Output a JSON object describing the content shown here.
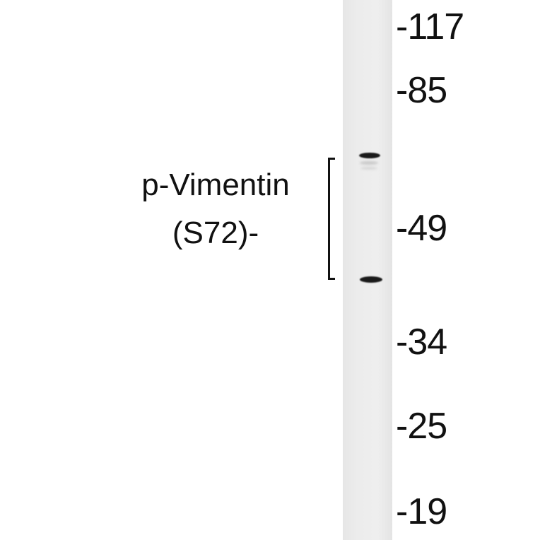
{
  "protein_label": {
    "line1": "p-Vimentin",
    "line2": "(S72)-"
  },
  "markers": [
    "-117",
    "-85",
    "-49",
    "-34",
    "-25",
    "-19"
  ],
  "lanes": 1,
  "bands": [
    "upper band at bracket top",
    "lower band at bracket bottom"
  ]
}
